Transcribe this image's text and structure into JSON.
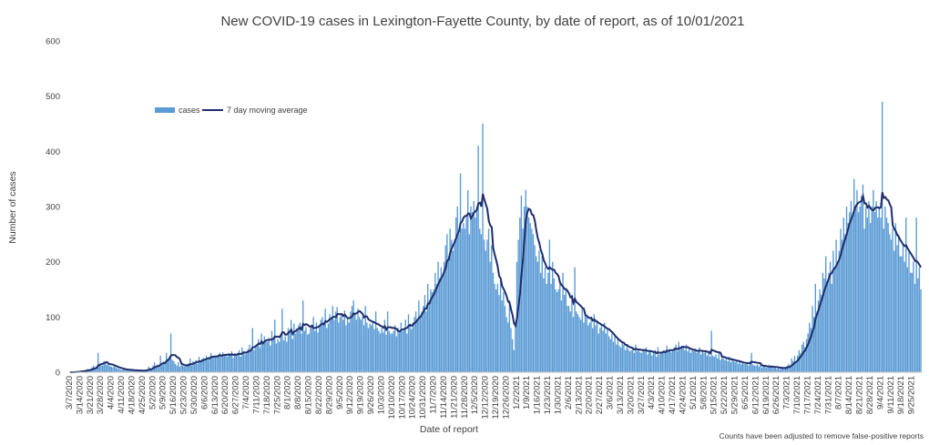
{
  "chart_data": {
    "type": "bar",
    "title": "New COVID-19 cases in Lexington-Fayette County, by date of report, as of 10/01/2021",
    "xlabel": "Date of report",
    "ylabel": "Number of cases",
    "ylim": [
      0,
      600
    ],
    "yticks": [
      "0",
      "100",
      "200",
      "300",
      "400",
      "500",
      "600"
    ],
    "grid": false,
    "legend_position": "top-left",
    "footnote": "Counts have been adjusted to remove false-positive reports",
    "x_start": "2020-03-07",
    "x_end": "2021-09-30",
    "xtick_labels": [
      "3/7/2020",
      "3/14/2020",
      "3/21/2020",
      "3/28/2020",
      "4/4/2020",
      "4/11/2020",
      "4/18/2020",
      "4/25/2020",
      "5/2/2020",
      "5/9/2020",
      "5/16/2020",
      "5/23/2020",
      "5/30/2020",
      "6/6/2020",
      "6/13/2020",
      "6/20/2020",
      "6/27/2020",
      "7/4/2020",
      "7/11/2020",
      "7/18/2020",
      "7/25/2020",
      "8/1/2020",
      "8/8/2020",
      "8/15/2020",
      "8/22/2020",
      "8/29/2020",
      "9/5/2020",
      "9/12/2020",
      "9/19/2020",
      "9/26/2020",
      "10/3/2020",
      "10/10/2020",
      "10/17/2020",
      "10/24/2020",
      "10/31/2020",
      "11/7/2020",
      "11/14/2020",
      "11/21/2020",
      "11/28/2020",
      "12/5/2020",
      "12/12/2020",
      "12/19/2020",
      "12/26/2020",
      "1/2/2021",
      "1/9/2021",
      "1/16/2021",
      "1/23/2021",
      "1/30/2021",
      "2/6/2021",
      "2/13/2021",
      "2/20/2021",
      "2/27/2021",
      "3/6/2021",
      "3/13/2021",
      "3/20/2021",
      "3/27/2021",
      "4/3/2021",
      "4/10/2021",
      "4/17/2021",
      "4/24/2021",
      "5/1/2021",
      "5/8/2021",
      "5/15/2021",
      "5/22/2021",
      "5/29/2021",
      "6/5/2021",
      "6/12/2021",
      "6/19/2021",
      "6/26/2021",
      "7/3/2021",
      "7/10/2021",
      "7/17/2021",
      "7/24/2021",
      "7/31/2021",
      "8/7/2021",
      "8/14/2021",
      "8/21/2021",
      "8/28/2021",
      "9/4/2021",
      "9/11/2021",
      "9/18/2021",
      "9/25/2021"
    ],
    "series": [
      {
        "name": "cases",
        "color": "#5b9bd5",
        "note": "daily values, one per week listed by week-start date (Sun..Sat approximated)",
        "weekly_daily_values": [
          [
            0,
            0,
            0,
            1,
            1,
            2,
            1
          ],
          [
            2,
            3,
            2,
            4,
            3,
            6,
            5
          ],
          [
            6,
            9,
            12,
            8,
            10,
            35,
            14
          ],
          [
            15,
            12,
            20,
            18,
            13,
            15,
            11
          ],
          [
            10,
            9,
            12,
            8,
            7,
            6,
            5
          ],
          [
            4,
            5,
            6,
            3,
            4,
            5,
            3
          ],
          [
            3,
            4,
            2,
            3,
            2,
            4,
            3
          ],
          [
            2,
            3,
            4,
            5,
            10,
            8,
            6
          ],
          [
            12,
            18,
            10,
            14,
            8,
            30,
            16
          ],
          [
            20,
            18,
            35,
            25,
            28,
            70,
            22
          ],
          [
            20,
            15,
            12,
            18,
            10,
            14,
            12
          ],
          [
            10,
            12,
            14,
            16,
            25,
            12,
            20
          ],
          [
            18,
            22,
            15,
            28,
            20,
            24,
            26
          ],
          [
            25,
            30,
            22,
            28,
            35,
            30,
            26
          ],
          [
            30,
            28,
            32,
            35,
            28,
            36,
            30
          ],
          [
            32,
            28,
            35,
            30,
            38,
            26,
            34
          ],
          [
            30,
            35,
            40,
            28,
            45,
            38,
            32
          ],
          [
            35,
            42,
            50,
            38,
            80,
            40,
            45
          ],
          [
            50,
            60,
            45,
            70,
            55,
            65,
            58
          ],
          [
            55,
            62,
            48,
            75,
            60,
            95,
            52
          ],
          [
            60,
            55,
            70,
            115,
            58,
            65,
            55
          ],
          [
            80,
            72,
            95,
            60,
            88,
            70,
            78
          ],
          [
            85,
            90,
            70,
            130,
            75,
            82,
            68
          ],
          [
            70,
            80,
            85,
            100,
            75,
            90,
            72
          ],
          [
            85,
            95,
            100,
            90,
            115,
            80,
            88
          ],
          [
            105,
            100,
            120,
            95,
            110,
            118,
            90
          ],
          [
            100,
            105,
            95,
            112,
            85,
            98,
            90
          ],
          [
            110,
            120,
            130,
            105,
            95,
            115,
            100
          ],
          [
            95,
            100,
            85,
            120,
            90,
            80,
            88
          ],
          [
            85,
            90,
            78,
            110,
            80,
            75,
            70
          ],
          [
            80,
            72,
            95,
            68,
            110,
            75,
            70
          ],
          [
            70,
            75,
            85,
            65,
            80,
            72,
            90
          ],
          [
            75,
            80,
            95,
            70,
            105,
            85,
            78
          ],
          [
            90,
            100,
            110,
            95,
            130,
            100,
            110
          ],
          [
            120,
            140,
            110,
            160,
            130,
            150,
            145
          ],
          [
            150,
            180,
            160,
            200,
            170,
            190,
            175
          ],
          [
            200,
            230,
            250,
            210,
            260,
            240,
            220
          ],
          [
            240,
            280,
            300,
            250,
            360,
            260,
            270
          ],
          [
            260,
            280,
            330,
            250,
            300,
            290,
            310
          ],
          [
            280,
            300,
            410,
            260,
            250,
            450,
            240
          ],
          [
            220,
            240,
            260,
            200,
            230,
            180,
            160
          ],
          [
            150,
            160,
            140,
            170,
            130,
            145,
            120
          ],
          [
            100,
            90,
            130,
            80,
            60,
            40,
            90
          ],
          [
            200,
            240,
            280,
            320,
            260,
            300,
            330
          ],
          [
            300,
            280,
            270,
            260,
            250,
            230,
            210
          ],
          [
            200,
            220,
            180,
            210,
            170,
            190,
            160
          ],
          [
            180,
            240,
            160,
            200,
            170,
            150,
            145
          ],
          [
            150,
            160,
            130,
            180,
            140,
            150,
            120
          ],
          [
            120,
            110,
            140,
            100,
            190,
            110,
            105
          ],
          [
            100,
            95,
            115,
            90,
            110,
            100,
            85
          ],
          [
            90,
            100,
            80,
            105,
            85,
            95,
            70
          ],
          [
            80,
            85,
            75,
            90,
            70,
            80,
            65
          ],
          [
            60,
            70,
            55,
            65,
            50,
            60,
            48
          ],
          [
            45,
            55,
            50,
            40,
            48,
            42,
            38
          ],
          [
            40,
            45,
            35,
            50,
            38,
            42,
            36
          ],
          [
            35,
            42,
            38,
            45,
            32,
            40,
            36
          ],
          [
            30,
            35,
            40,
            28,
            45,
            32,
            36
          ],
          [
            38,
            40,
            35,
            48,
            40,
            42,
            36
          ],
          [
            40,
            45,
            50,
            38,
            55,
            42,
            48
          ],
          [
            45,
            40,
            50,
            38,
            42,
            35,
            40
          ],
          [
            38,
            42,
            35,
            40,
            45,
            32,
            38
          ],
          [
            35,
            40,
            30,
            38,
            28,
            75,
            30
          ],
          [
            28,
            32,
            25,
            35,
            22,
            28,
            25
          ],
          [
            22,
            25,
            20,
            28,
            18,
            24,
            20
          ],
          [
            18,
            20,
            15,
            22,
            14,
            18,
            15
          ],
          [
            15,
            18,
            12,
            20,
            35,
            14,
            12
          ],
          [
            12,
            14,
            10,
            15,
            8,
            12,
            10
          ],
          [
            8,
            10,
            12,
            9,
            11,
            7,
            10
          ],
          [
            6,
            8,
            5,
            10,
            7,
            9,
            8
          ],
          [
            12,
            15,
            10,
            25,
            20,
            30,
            18
          ],
          [
            30,
            40,
            35,
            50,
            55,
            45,
            60
          ],
          [
            70,
            90,
            80,
            120,
            100,
            160,
            110
          ],
          [
            130,
            150,
            140,
            180,
            170,
            210,
            160
          ],
          [
            180,
            200,
            160,
            220,
            190,
            240,
            200
          ],
          [
            220,
            260,
            240,
            280,
            250,
            300,
            270
          ],
          [
            290,
            310,
            280,
            350,
            300,
            330,
            290
          ],
          [
            300,
            320,
            340,
            260,
            300,
            280,
            310
          ],
          [
            270,
            300,
            330,
            290,
            310,
            280,
            300
          ],
          [
            280,
            490,
            260,
            300,
            280,
            270,
            250
          ],
          [
            240,
            260,
            220,
            270,
            230,
            250,
            210
          ],
          [
            210,
            230,
            200,
            280,
            190,
            220,
            180
          ],
          [
            180,
            200,
            160,
            280,
            170,
            190,
            150
          ]
        ]
      },
      {
        "name": "7 day moving average",
        "color": "#1f2d6b"
      }
    ]
  }
}
